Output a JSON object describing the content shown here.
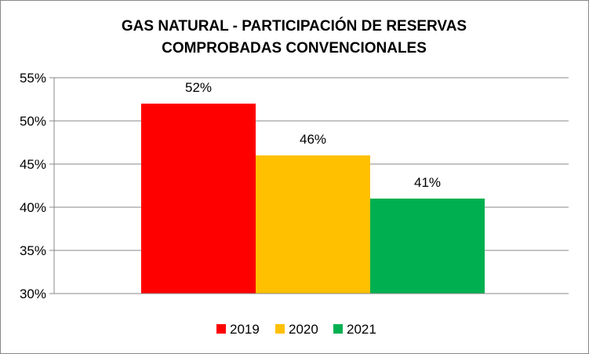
{
  "chart_data": {
    "type": "bar",
    "title_line1": "GAS NATURAL - PARTICIPACIÓN DE RESERVAS",
    "title_line2": "COMPROBADAS CONVENCIONALES",
    "categories": [
      "2019",
      "2020",
      "2021"
    ],
    "values": [
      52,
      46,
      41
    ],
    "data_labels": [
      "52%",
      "46%",
      "41%"
    ],
    "colors": [
      "#ff0000",
      "#ffc000",
      "#00b050"
    ],
    "ylim": [
      30,
      55
    ],
    "yticks": [
      55,
      50,
      45,
      40,
      35,
      30
    ],
    "ytick_labels": [
      "55%",
      "50%",
      "45%",
      "40%",
      "35%",
      "30%"
    ],
    "grid": true,
    "legend_position": "bottom",
    "legend": [
      "2019",
      "2020",
      "2021"
    ]
  }
}
